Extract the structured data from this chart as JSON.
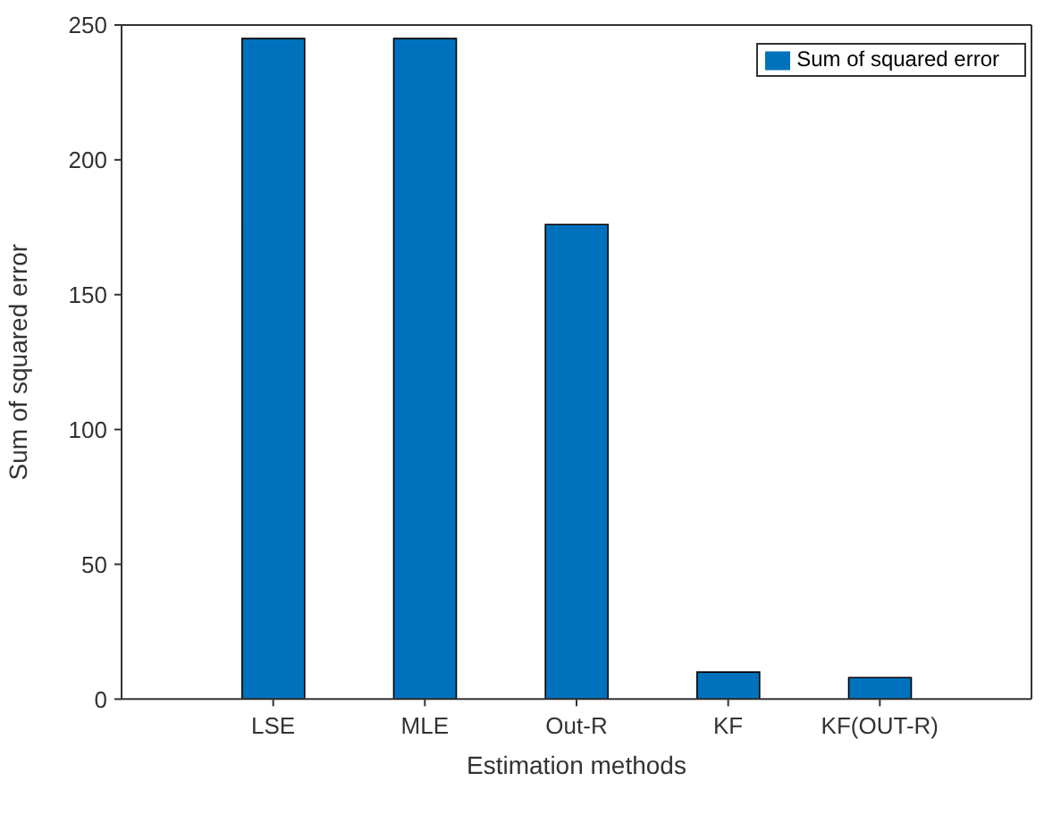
{
  "chart_data": {
    "type": "bar",
    "xlabel": "Estimation methods",
    "ylabel": "Sum of squared error",
    "categories": [
      "LSE",
      "MLE",
      "Out-R",
      "KF",
      "KF(OUT-R)"
    ],
    "series": [
      {
        "name": "Sum of squared error",
        "color": "#0072bd",
        "values": [
          245,
          245,
          176,
          10,
          8
        ]
      }
    ],
    "ylim": [
      0,
      250
    ],
    "yticks": [
      0,
      50,
      100,
      150,
      200,
      250
    ],
    "grid": false,
    "legend": "top right"
  }
}
